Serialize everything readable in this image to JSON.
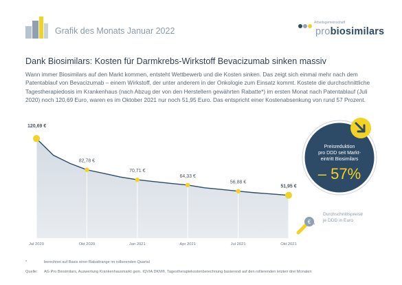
{
  "header": {
    "title": "Grafik des Monats Januar 2022",
    "logo_top": "Arbeitsgemeinschaft",
    "logo_pro": "pro",
    "logo_brand": "biosimilars"
  },
  "headline": "Dank Biosimilars: Kosten für Darmkrebs-Wirkstoff Bevacizumab sinken massiv",
  "body": "Wann immer Biosimilars auf den Markt kommen, entsteht Wettbewerb und die Kosten sinken. Das zeigt sich einmal mehr nach dem Patentablauf von Bevacizumab – einem Wirkstoff, der unter anderem in der Onkologie zum Einsatz kommt. Kostete die durchschnittliche Tagestherapiedosis im Krankenhaus (nach Abzug der von den Herstellern gewährten Rabatte*) im ersten Monat nach Patentablauf (Juli 2020) noch 120,69 Euro, waren es im Oktober 2021 nur noch 51,95 Euro. Das entspricht einer Kostenabsenkung von rund 57 Prozent.",
  "badge": {
    "line1": "Preisreduktion",
    "line2": "pro DDD seit Markt-",
    "line3": "eintritt Biosimilars",
    "value": "– 57%"
  },
  "legend": {
    "line1": "Durchschnittspreise",
    "line2": "je DDD in Euro"
  },
  "footnotes": [
    {
      "key": "*",
      "text": "berechnet auf Basis einer Rabattrange im rollierenden Quartal"
    },
    {
      "key": "Quelle:",
      "text": "AG Pro Biosimilars, Auswertung Krankenhausmarkt gem. IQVIA DKM®, Tagestherapiekostenberechnung basierend auf den rollierenden letzten drei Monaten"
    }
  ],
  "colors": {
    "line": "#2d4a66",
    "area": "#dde3ea",
    "marker": "#f2d324",
    "badge": "#2d4a66",
    "badge_value": "#f2d324"
  },
  "chart_data": {
    "type": "area",
    "x": [
      "Jul 2020",
      "Aug 2020",
      "Sep 2020",
      "Okt 2020",
      "Nov 2020",
      "Dez 2020",
      "Jan 2021",
      "Feb 2021",
      "Mär 2021",
      "Apr 2021",
      "Mai 2021",
      "Jun 2021",
      "Jul 2021",
      "Aug 2021",
      "Sep 2021",
      "Okt 2021"
    ],
    "values": [
      120.69,
      100.5,
      90.5,
      82.78,
      78.5,
      74.0,
      70.71,
      68.5,
      66.3,
      64.33,
      61.0,
      59.0,
      56.88,
      55.0,
      53.5,
      51.95
    ],
    "tick_labels": [
      "Jul 2020",
      "Okt 2020",
      "Jan 2021",
      "Apr 2021",
      "Jul 2021",
      "Okt 2021"
    ],
    "tick_indices": [
      0,
      3,
      6,
      9,
      12,
      15
    ],
    "data_labels": [
      {
        "index": 0,
        "text": "120,69 €"
      },
      {
        "index": 3,
        "text": "82,78 €"
      },
      {
        "index": 6,
        "text": "70,71 €"
      },
      {
        "index": 9,
        "text": "64,33 €"
      },
      {
        "index": 12,
        "text": "56,88 €"
      },
      {
        "index": 15,
        "text": "51,95 €"
      }
    ],
    "ylim": [
      0,
      125
    ],
    "grid": false
  }
}
